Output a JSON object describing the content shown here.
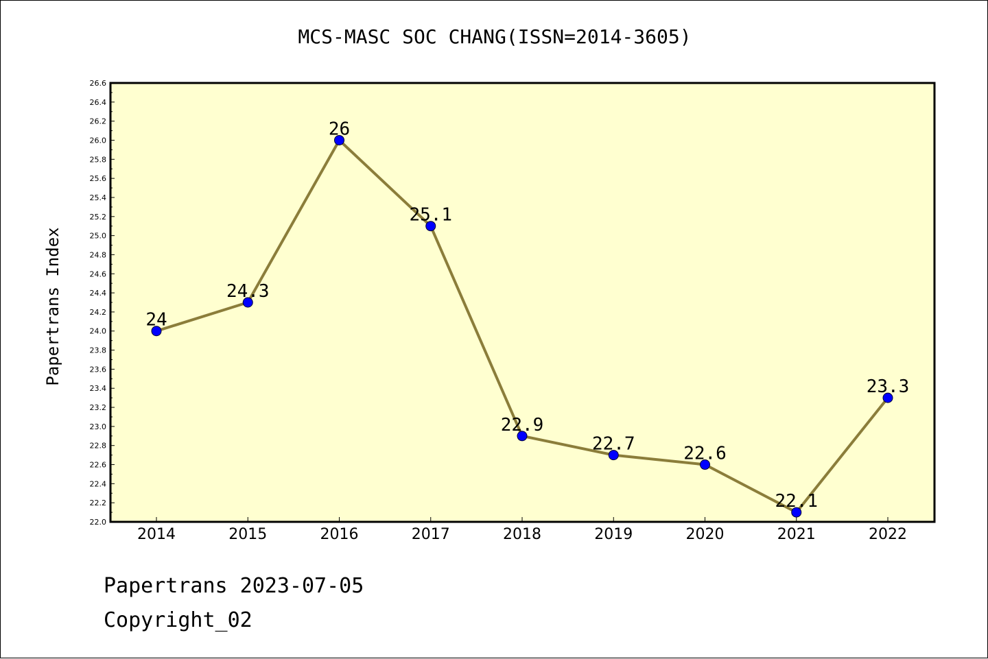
{
  "chart_data": {
    "type": "line",
    "title": "MCS-MASC SOC CHANG(ISSN=2014-3605)",
    "xlabel": "",
    "ylabel": "Papertrans Index",
    "x": [
      "2014",
      "2015",
      "2016",
      "2017",
      "2018",
      "2019",
      "2020",
      "2021",
      "2022"
    ],
    "values": [
      24,
      24.3,
      26,
      25.1,
      22.9,
      22.7,
      22.6,
      22.1,
      23.3
    ],
    "data_labels": [
      "24",
      "24.3",
      "26",
      "25.1",
      "22.9",
      "22.7",
      "22.6",
      "22.1",
      "23.3"
    ],
    "ylim": [
      22.0,
      26.6
    ],
    "yticks": [
      "22.0",
      "22.2",
      "22.4",
      "22.6",
      "22.8",
      "23.0",
      "23.2",
      "23.4",
      "23.6",
      "23.8",
      "24.0",
      "24.2",
      "24.4",
      "24.6",
      "24.8",
      "25.0",
      "25.2",
      "25.4",
      "25.6",
      "25.8",
      "26.0",
      "26.2",
      "26.4",
      "26.6"
    ],
    "grid": false,
    "colors": {
      "plot_background": "#ffffd0",
      "line": "#8b7d3a",
      "marker": "#0000ff"
    }
  },
  "footer": {
    "line1": "Papertrans 2023-07-05",
    "line2": "Copyright_02"
  }
}
